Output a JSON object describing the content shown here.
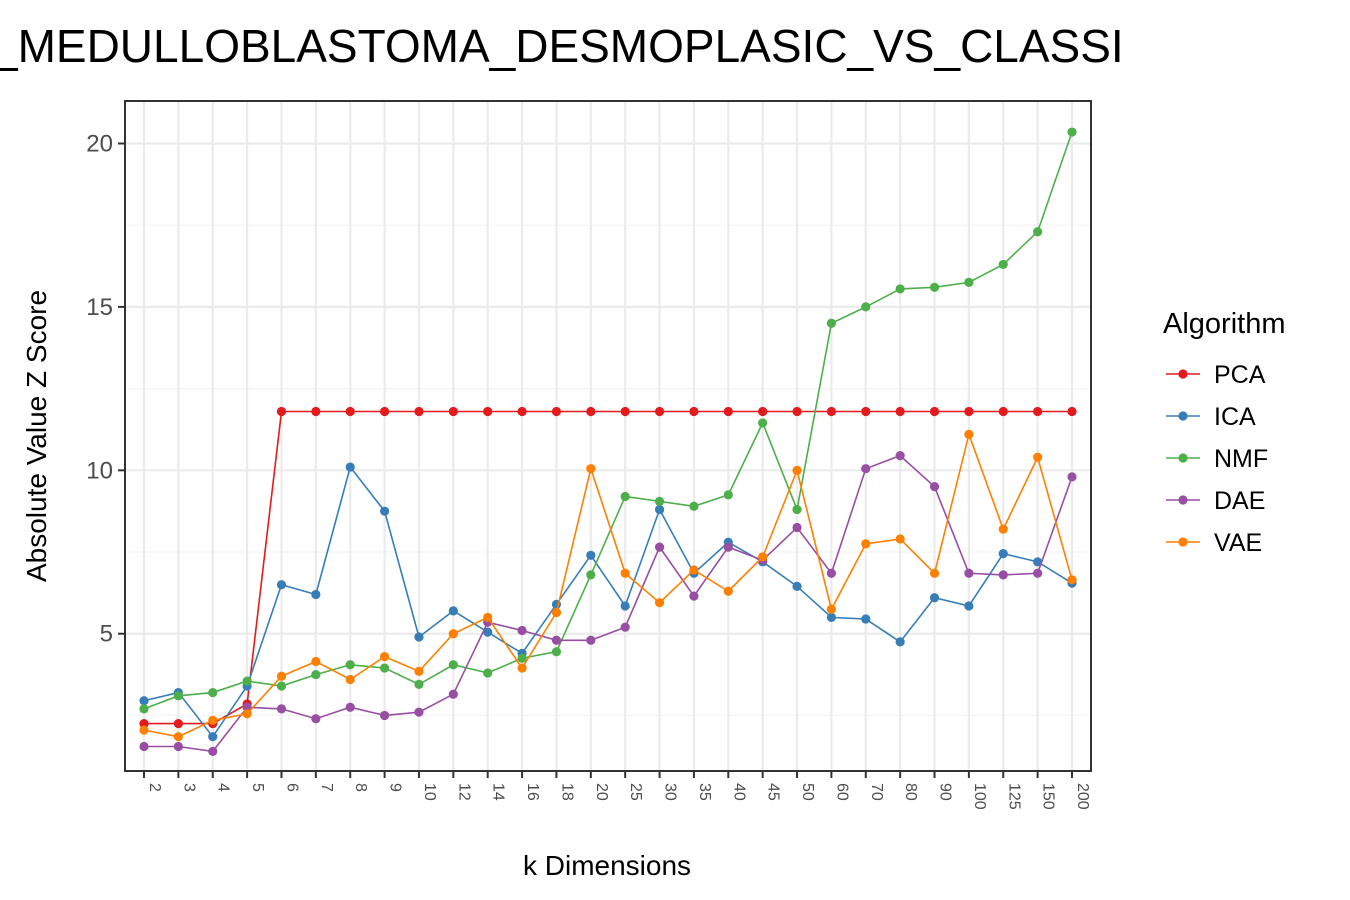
{
  "chart_data": {
    "type": "line",
    "title": "_MEDULLOBLASTOMA_DESMOPLASIC_VS_CLASSI",
    "xlabel": "k Dimensions",
    "ylabel": "Absolute Value Z Score",
    "categories": [
      "2",
      "3",
      "4",
      "5",
      "6",
      "7",
      "8",
      "9",
      "10",
      "12",
      "14",
      "16",
      "18",
      "20",
      "25",
      "30",
      "35",
      "40",
      "45",
      "50",
      "60",
      "70",
      "80",
      "90",
      "100",
      "125",
      "150",
      "200"
    ],
    "yticks": [
      5,
      10,
      15,
      20
    ],
    "ylim": [
      0.8,
      21.3
    ],
    "grid": true,
    "legend": {
      "title": "Algorithm",
      "position": "right"
    },
    "series": [
      {
        "name": "PCA",
        "color": "#E41A1C",
        "values": [
          2.25,
          2.25,
          2.25,
          2.85,
          11.8,
          11.8,
          11.8,
          11.8,
          11.8,
          11.8,
          11.8,
          11.8,
          11.8,
          11.8,
          11.8,
          11.8,
          11.8,
          11.8,
          11.8,
          11.8,
          11.8,
          11.8,
          11.8,
          11.8,
          11.8,
          11.8,
          11.8,
          11.8
        ]
      },
      {
        "name": "ICA",
        "color": "#377EB8",
        "values": [
          2.95,
          3.2,
          1.85,
          3.4,
          6.5,
          6.2,
          10.1,
          8.75,
          4.9,
          5.7,
          5.05,
          4.4,
          5.9,
          7.4,
          5.85,
          8.8,
          6.85,
          7.8,
          7.2,
          6.45,
          5.5,
          5.45,
          4.75,
          6.1,
          5.85,
          7.45,
          7.2,
          6.55
        ]
      },
      {
        "name": "NMF",
        "color": "#4DAF4A",
        "values": [
          2.7,
          3.1,
          3.2,
          3.55,
          3.4,
          3.75,
          4.05,
          3.95,
          3.45,
          4.05,
          3.8,
          4.25,
          4.45,
          6.8,
          9.2,
          9.05,
          8.9,
          9.25,
          11.45,
          8.8,
          14.5,
          15.0,
          15.55,
          15.6,
          15.75,
          16.3,
          17.3,
          20.35
        ]
      },
      {
        "name": "DAE",
        "color": "#984EA3",
        "values": [
          1.55,
          1.55,
          1.4,
          2.75,
          2.7,
          2.4,
          2.75,
          2.5,
          2.6,
          3.15,
          5.35,
          5.1,
          4.8,
          4.8,
          5.2,
          7.65,
          6.15,
          7.65,
          7.25,
          8.25,
          6.85,
          10.05,
          10.45,
          9.5,
          6.85,
          6.8,
          6.85,
          9.8
        ]
      },
      {
        "name": "VAE",
        "color": "#FF7F00",
        "values": [
          2.05,
          1.85,
          2.35,
          2.55,
          3.7,
          4.15,
          3.6,
          4.3,
          3.85,
          5.0,
          5.5,
          3.95,
          5.65,
          10.05,
          6.85,
          5.95,
          6.95,
          6.3,
          7.35,
          10.0,
          5.75,
          7.75,
          7.9,
          6.85,
          11.1,
          8.2,
          10.4,
          6.65
        ]
      }
    ]
  }
}
